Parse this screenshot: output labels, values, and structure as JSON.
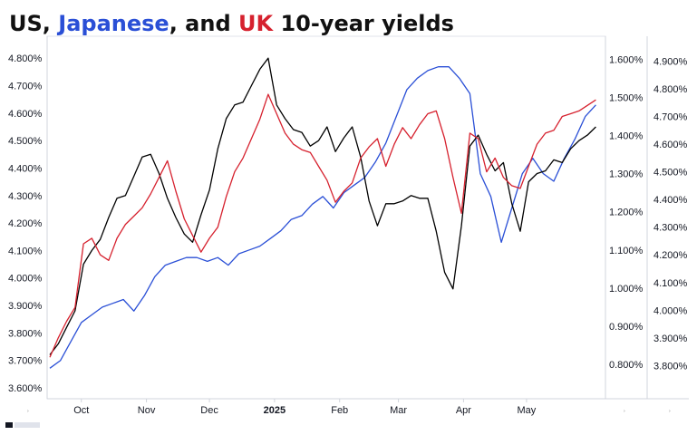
{
  "chart_data": {
    "type": "line",
    "title": {
      "parts": [
        {
          "text": "US",
          "color": "#111111"
        },
        {
          "text": ", ",
          "color": "#111111"
        },
        {
          "text": "Japanese",
          "color": "#2a4fd6"
        },
        {
          "text": ", and ",
          "color": "#111111"
        },
        {
          "text": "UK",
          "color": "#d6212e"
        },
        {
          "text": " 10-year yields",
          "color": "#111111"
        }
      ]
    },
    "x_ticks": [
      {
        "label": "Oct",
        "x": 15,
        "bold": false
      },
      {
        "label": "Nov",
        "x": 46,
        "bold": false
      },
      {
        "label": "Dec",
        "x": 76,
        "bold": false
      },
      {
        "label": "2025",
        "x": 107,
        "bold": true
      },
      {
        "label": "Feb",
        "x": 138,
        "bold": false
      },
      {
        "label": "Mar",
        "x": 166,
        "bold": false
      },
      {
        "label": "Apr",
        "x": 197,
        "bold": false
      },
      {
        "label": "May",
        "x": 227,
        "bold": false
      }
    ],
    "x_range": [
      0,
      262
    ],
    "axes": {
      "left": {
        "range": [
          3.56,
          4.88
        ],
        "ticks": [
          "3.600%",
          "3.700%",
          "3.800%",
          "3.900%",
          "4.000%",
          "4.100%",
          "4.200%",
          "4.300%",
          "4.400%",
          "4.500%",
          "4.600%",
          "4.700%",
          "4.800%"
        ]
      },
      "mid": {
        "range": [
          0.71,
          1.66
        ],
        "ticks": [
          "0.800%",
          "0.900%",
          "1.000%",
          "1.100%",
          "1.200%",
          "1.300%",
          "1.400%",
          "1.500%",
          "1.600%"
        ]
      },
      "right": {
        "range": [
          3.68,
          4.99
        ],
        "ticks": [
          "3.800%",
          "3.900%",
          "4.000%",
          "4.100%",
          "4.200%",
          "4.300%",
          "4.400%",
          "4.500%",
          "4.600%",
          "4.700%",
          "4.800%",
          "4.900%"
        ]
      }
    },
    "series": [
      {
        "color": "#2a4fd6",
        "axis": "mid",
        "x": [
          0,
          5,
          10,
          15,
          20,
          25,
          30,
          35,
          40,
          45,
          50,
          55,
          60,
          65,
          70,
          75,
          80,
          85,
          90,
          95,
          100,
          105,
          110,
          115,
          120,
          125,
          130,
          135,
          140,
          145,
          150,
          155,
          160,
          165,
          170,
          175,
          180,
          185,
          190,
          195,
          200,
          205,
          210,
          215,
          220,
          225,
          230,
          235,
          240,
          245,
          250,
          255,
          260
        ],
        "values": [
          0.79,
          0.81,
          0.86,
          0.91,
          0.93,
          0.95,
          0.96,
          0.97,
          0.94,
          0.98,
          1.03,
          1.06,
          1.07,
          1.08,
          1.08,
          1.07,
          1.08,
          1.06,
          1.09,
          1.1,
          1.11,
          1.13,
          1.15,
          1.18,
          1.19,
          1.22,
          1.24,
          1.21,
          1.25,
          1.27,
          1.29,
          1.33,
          1.38,
          1.45,
          1.52,
          1.55,
          1.57,
          1.58,
          1.58,
          1.55,
          1.51,
          1.3,
          1.24,
          1.12,
          1.21,
          1.3,
          1.34,
          1.3,
          1.28,
          1.34,
          1.39,
          1.45,
          1.48
        ]
      },
      {
        "color": "#000000",
        "axis": "left",
        "x": [
          0,
          4,
          8,
          12,
          16,
          20,
          24,
          28,
          32,
          36,
          40,
          44,
          48,
          52,
          56,
          60,
          64,
          68,
          72,
          76,
          80,
          84,
          88,
          92,
          96,
          100,
          104,
          108,
          112,
          116,
          120,
          124,
          128,
          132,
          136,
          140,
          144,
          148,
          152,
          156,
          160,
          164,
          168,
          172,
          176,
          180,
          184,
          188,
          192,
          196,
          200,
          204,
          208,
          212,
          216,
          220,
          224,
          228,
          232,
          236,
          240,
          244,
          248,
          252,
          256,
          260
        ],
        "values": [
          3.72,
          3.76,
          3.82,
          3.88,
          4.05,
          4.1,
          4.14,
          4.22,
          4.29,
          4.3,
          4.37,
          4.44,
          4.45,
          4.38,
          4.29,
          4.22,
          4.16,
          4.13,
          4.23,
          4.32,
          4.47,
          4.58,
          4.63,
          4.64,
          4.7,
          4.76,
          4.8,
          4.63,
          4.58,
          4.54,
          4.53,
          4.48,
          4.5,
          4.55,
          4.46,
          4.51,
          4.55,
          4.44,
          4.28,
          4.19,
          4.27,
          4.27,
          4.28,
          4.3,
          4.29,
          4.29,
          4.17,
          4.02,
          3.96,
          4.19,
          4.48,
          4.52,
          4.45,
          4.39,
          4.42,
          4.27,
          4.17,
          4.35,
          4.38,
          4.39,
          4.43,
          4.42,
          4.47,
          4.5,
          4.52,
          4.55
        ]
      },
      {
        "color": "#d6212e",
        "axis": "right",
        "x": [
          0,
          4,
          8,
          12,
          16,
          20,
          24,
          28,
          32,
          36,
          40,
          44,
          48,
          52,
          56,
          60,
          64,
          68,
          72,
          76,
          80,
          84,
          88,
          92,
          96,
          100,
          104,
          108,
          112,
          116,
          120,
          124,
          128,
          132,
          136,
          140,
          144,
          148,
          152,
          156,
          160,
          164,
          168,
          172,
          176,
          180,
          184,
          188,
          192,
          196,
          200,
          204,
          208,
          212,
          216,
          220,
          224,
          228,
          232,
          236,
          240,
          244,
          248,
          252,
          256,
          260
        ],
        "values": [
          3.83,
          3.9,
          3.96,
          4.01,
          4.24,
          4.26,
          4.2,
          4.18,
          4.26,
          4.31,
          4.34,
          4.37,
          4.42,
          4.48,
          4.54,
          4.43,
          4.33,
          4.27,
          4.21,
          4.26,
          4.3,
          4.41,
          4.5,
          4.55,
          4.62,
          4.69,
          4.78,
          4.71,
          4.64,
          4.6,
          4.58,
          4.57,
          4.52,
          4.47,
          4.39,
          4.43,
          4.46,
          4.55,
          4.59,
          4.62,
          4.52,
          4.6,
          4.66,
          4.62,
          4.67,
          4.71,
          4.72,
          4.62,
          4.48,
          4.35,
          4.64,
          4.62,
          4.5,
          4.55,
          4.48,
          4.45,
          4.44,
          4.52,
          4.6,
          4.64,
          4.65,
          4.7,
          4.71,
          4.72,
          4.74,
          4.76
        ]
      }
    ]
  }
}
